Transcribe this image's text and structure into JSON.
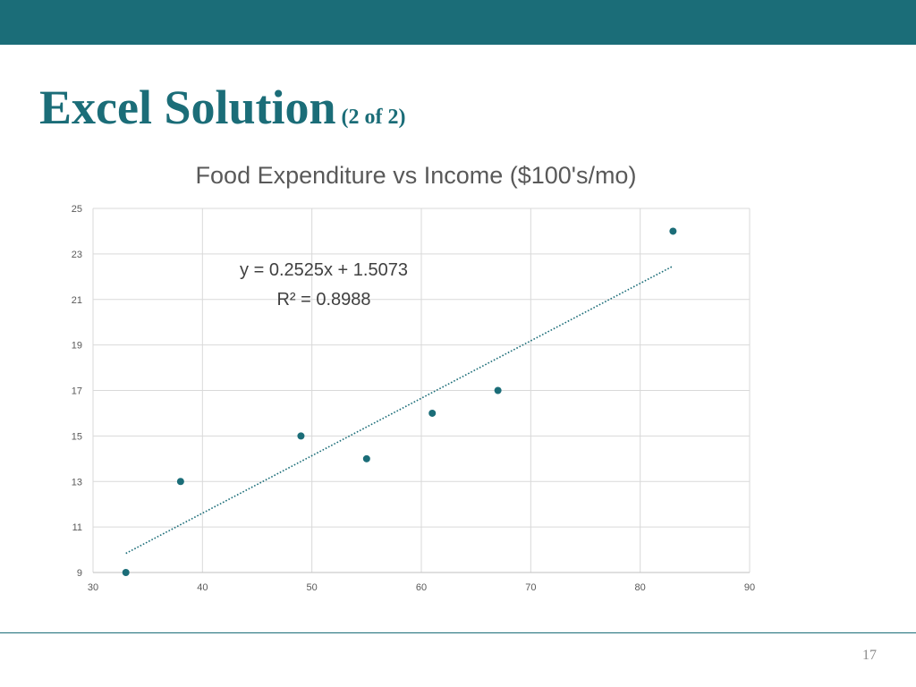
{
  "slide": {
    "title": "Excel Solution",
    "subtitle": "(2 of 2)",
    "page_number": "17"
  },
  "colors": {
    "accent": "#1b6d78",
    "grid": "#d9d9d9",
    "text": "#595959"
  },
  "chart_data": {
    "type": "scatter",
    "title": "Food Expenditure vs Income ($100's/mo)",
    "xlabel": "",
    "ylabel": "",
    "xlim": [
      30,
      90
    ],
    "ylim": [
      9,
      25
    ],
    "x_ticks": [
      30,
      40,
      50,
      60,
      70,
      80,
      90
    ],
    "y_ticks": [
      9,
      11,
      13,
      15,
      17,
      19,
      21,
      23,
      25
    ],
    "grid": true,
    "legend": "none",
    "series": [
      {
        "points": [
          {
            "x": 33,
            "y": 9
          },
          {
            "x": 38,
            "y": 13
          },
          {
            "x": 49,
            "y": 15
          },
          {
            "x": 55,
            "y": 14
          },
          {
            "x": 61,
            "y": 16
          },
          {
            "x": 67,
            "y": 17
          },
          {
            "x": 83,
            "y": 24
          }
        ]
      }
    ],
    "trendline": {
      "slope": 0.2525,
      "intercept": 1.5073,
      "x_range": [
        33,
        83
      ],
      "equation_label": "y = 0.2525x + 1.5073",
      "r_squared_label": "R² = 0.8988"
    }
  }
}
